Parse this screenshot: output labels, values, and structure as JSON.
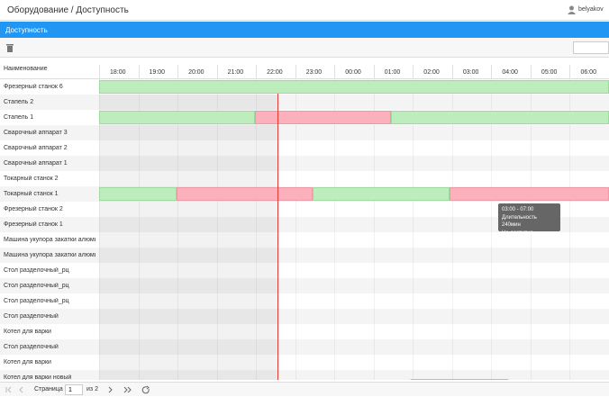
{
  "header": {
    "breadcrumb": "Оборудование / Доступность",
    "user": "belyakov"
  },
  "panel": {
    "title": "Доступность"
  },
  "grid": {
    "name_column": "Наименование",
    "hours": [
      "18:00",
      "19:00",
      "20:00",
      "21:00",
      "22:00",
      "23:00",
      "00:00",
      "01:00",
      "02:00",
      "03:00",
      "04:00",
      "05:00",
      "06:00"
    ],
    "rows": [
      "Фрезерный станок 6",
      "Стапель 2",
      "Стапель 1",
      "Сварочный аппарат 3",
      "Сварочный аппарат 2",
      "Сварочный аппарат 1",
      "Токарный станок 2",
      "Токарный станок 1",
      "Фрезерный станок 2",
      "Фрезерный станок 1",
      "Машина укупора закатки алюмин...",
      "Машина укупора закатки алюмин...",
      "Стол разделочный_рц",
      "Стол разделочный_рц",
      "Стол разделочный_рц",
      "Стол разделочный",
      "Котел для варки",
      "Стол разделочный",
      "Котел для варки",
      "Котел для варки новый"
    ]
  },
  "tooltip": {
    "time": "03:00 - 07:00",
    "duration": "Длительность 240мин",
    "status": "Не доступно"
  },
  "pager": {
    "page_label": "Страница",
    "page": "1",
    "of": "из 2"
  }
}
